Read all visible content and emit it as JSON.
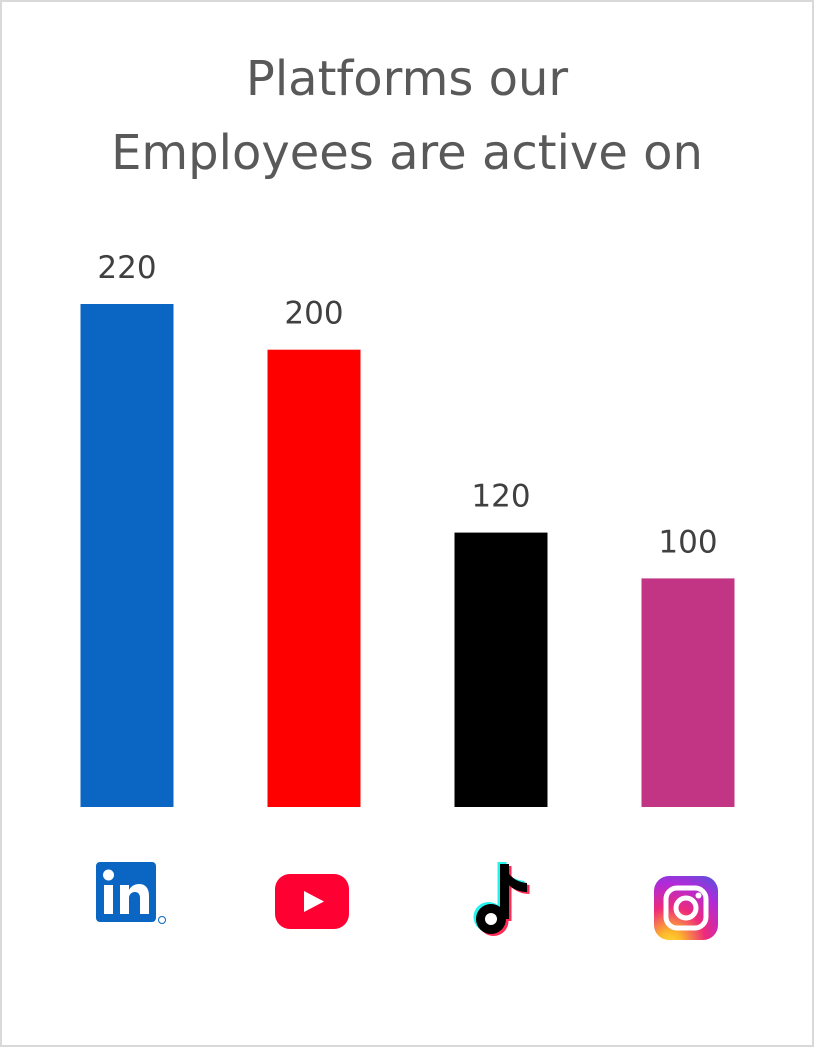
{
  "chart_data": {
    "type": "bar",
    "title_lines": [
      "Platforms our",
      "Employees are active on"
    ],
    "categories": [
      "LinkedIn",
      "YouTube",
      "TikTok",
      "Instagram"
    ],
    "values": [
      220,
      200,
      120,
      100
    ],
    "colors": [
      "#0a66c2",
      "#ff0000",
      "#000000",
      "#c13584"
    ],
    "category_icons": [
      "linkedin-icon",
      "youtube-icon",
      "tiktok-icon",
      "instagram-icon"
    ],
    "ylim": [
      0,
      220
    ],
    "grid": false,
    "data_labels": true,
    "legend": "none"
  }
}
